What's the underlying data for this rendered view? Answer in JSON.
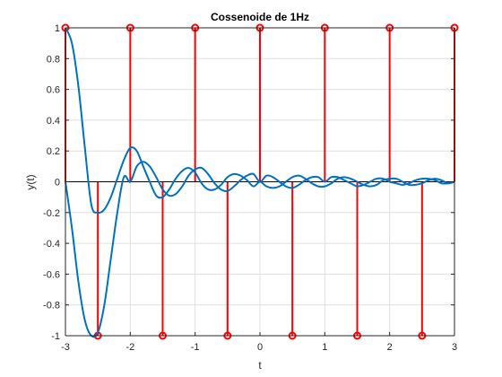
{
  "chart_data": {
    "type": "line",
    "title": "Cossenoide de 1Hz",
    "xlabel": "t",
    "ylabel": "y(t)",
    "xlim": [
      -3,
      3
    ],
    "ylim": [
      -1,
      1
    ],
    "x_ticks": [
      "-3",
      "-2",
      "-1",
      "0",
      "1",
      "2",
      "3"
    ],
    "y_ticks": [
      "1",
      "0.8",
      "0.6",
      "0.4",
      "0.2",
      "0",
      "-0.2",
      "-0.4",
      "-0.6",
      "-0.8",
      "-1"
    ],
    "grid": true,
    "colors": {
      "curves": "#0072BD",
      "stems": "#FF0000",
      "axes": "#262626",
      "grid": "#DFDFDF"
    },
    "stems": {
      "x": [
        -3,
        -2.5,
        -2,
        -1.5,
        -1,
        -0.5,
        0,
        0.5,
        1,
        1.5,
        2,
        2.5,
        3
      ],
      "y": [
        1,
        -1,
        1,
        -1,
        1,
        -1,
        1,
        -1,
        1,
        -1,
        1,
        -1,
        1
      ]
    },
    "series": [
      {
        "x": [
          -3,
          -2.9,
          -2.8,
          -2.7,
          -2.6,
          -2.5,
          -2.4,
          -2.3,
          -2.2,
          -2.1,
          -2,
          -1.9,
          -1.8,
          -1.7,
          -1.6,
          -1.5,
          -1.4,
          -1.3,
          -1.2,
          -1.1,
          -1,
          -0.9,
          -0.8,
          -0.7,
          -0.6,
          -0.5,
          -0.4,
          -0.3,
          -0.2,
          -0.1,
          0,
          0.1,
          0.2,
          0.3,
          0.4,
          0.5,
          0.6,
          0.7,
          0.8,
          0.9,
          1,
          1.1,
          1.2,
          1.3,
          1.4,
          1.5,
          1.6,
          1.7,
          1.8,
          1.9,
          2,
          2.1,
          2.2,
          2.3,
          2.4,
          2.5,
          2.6,
          2.7,
          2.8,
          2.9,
          3
        ],
        "values": [
          1,
          0.9,
          0.62,
          0.22,
          -0.15,
          -0.2,
          -0.18,
          -0.1,
          0.02,
          0.14,
          0.22,
          0.2,
          0.1,
          0,
          -0.09,
          -0.1,
          -0.05,
          0.02,
          0.07,
          0.09,
          0.06,
          -0.01,
          -0.05,
          -0.05,
          -0.02,
          0.03,
          0.05,
          0.04,
          0.01,
          -0.03,
          0,
          -0.03,
          -0.04,
          -0.03,
          0.0,
          0.03,
          0.04,
          0.02,
          -0.01,
          -0.03,
          -0.03,
          -0.01,
          0.02,
          0.03,
          0.02,
          0.0,
          -0.02,
          -0.03,
          -0.02,
          0.01,
          0.02,
          0.02,
          0.0,
          -0.02,
          -0.02,
          -0.01,
          0.01,
          0.02,
          0.01,
          -0.01,
          0
        ]
      },
      {
        "x": [
          -3,
          -2.9,
          -2.8,
          -2.7,
          -2.6,
          -2.5,
          -2.4,
          -2.3,
          -2.2,
          -2.1,
          -2,
          -1.9,
          -1.8,
          -1.7,
          -1.6,
          -1.5,
          -1.4,
          -1.3,
          -1.2,
          -1.1,
          -1,
          -0.9,
          -0.8,
          -0.7,
          -0.6,
          -0.5,
          -0.4,
          -0.3,
          -0.2,
          -0.1,
          0,
          0.1,
          0.2,
          0.3,
          0.4,
          0.5,
          0.6,
          0.7,
          0.8,
          0.9,
          1,
          1.1,
          1.2,
          1.3,
          1.4,
          1.5,
          1.6,
          1.7,
          1.8,
          1.9,
          2,
          2.1,
          2.2,
          2.3,
          2.4,
          2.5,
          2.6,
          2.7,
          2.8,
          2.9,
          3
        ],
        "values": [
          0,
          -0.3,
          -0.65,
          -0.9,
          -1.0,
          -0.98,
          -0.8,
          -0.5,
          -0.2,
          0.03,
          0.0,
          0.1,
          0.13,
          0.1,
          0.03,
          -0.05,
          -0.09,
          -0.08,
          -0.03,
          0.04,
          0.08,
          0.09,
          0.05,
          -0.01,
          -0.05,
          -0.06,
          -0.03,
          0.01,
          0.04,
          0.05,
          0,
          0.04,
          0.03,
          0.0,
          -0.03,
          -0.04,
          -0.02,
          0.01,
          0.03,
          0.03,
          0.0,
          0.03,
          0.03,
          0.01,
          -0.01,
          -0.03,
          -0.02,
          0.0,
          0.02,
          0.02,
          0.0,
          -0.01,
          -0.02,
          -0.01,
          0.01,
          0.02,
          0.02,
          0.01,
          -0.01,
          -0.01,
          0
        ]
      }
    ]
  }
}
